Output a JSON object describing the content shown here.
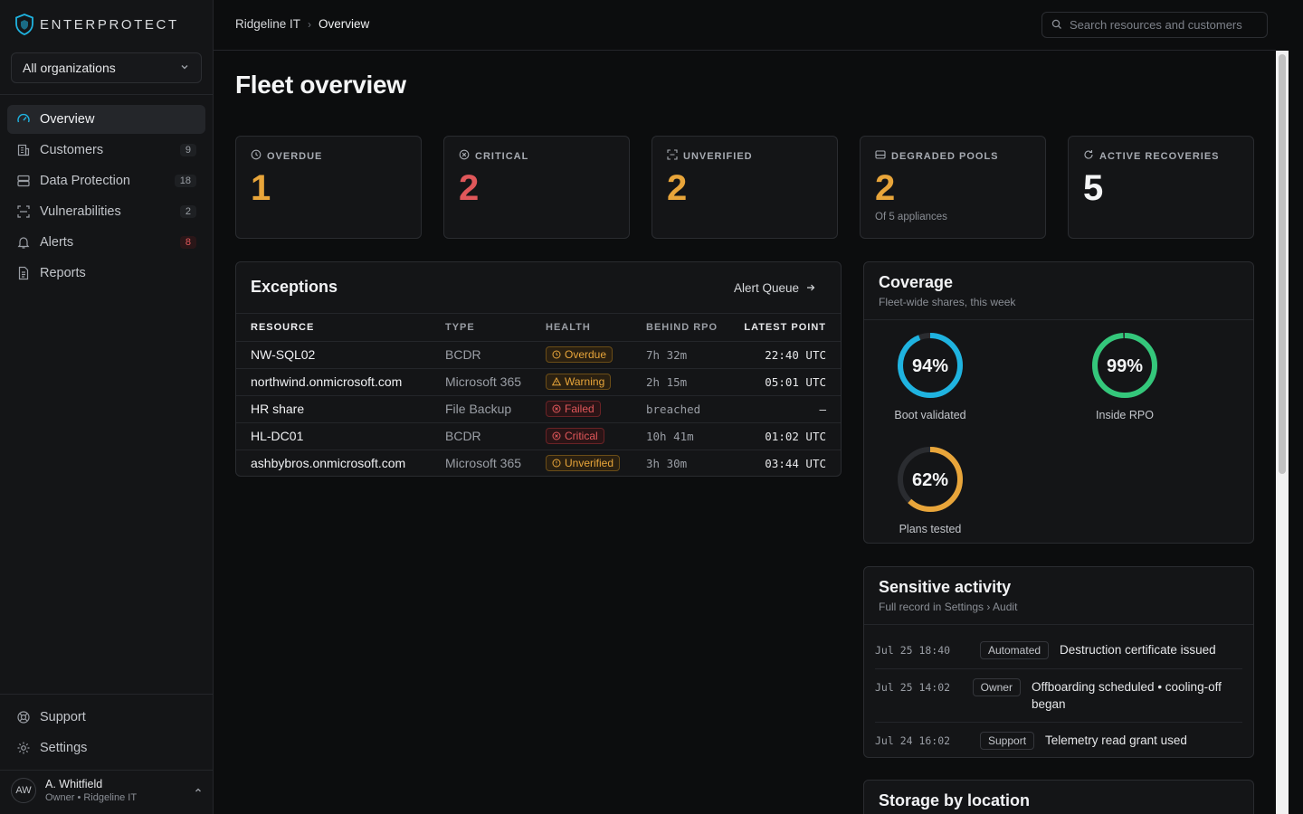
{
  "brand": {
    "name": "ENTERPROTECT"
  },
  "org_select": {
    "value": "All organizations"
  },
  "nav": [
    {
      "label": "Overview",
      "icon": "gauge-icon",
      "count": ""
    },
    {
      "label": "Customers",
      "icon": "building-icon",
      "count": "9"
    },
    {
      "label": "Data Protection",
      "icon": "database-icon",
      "count": "18"
    },
    {
      "label": "Vulnerabilities",
      "icon": "scan-icon",
      "count": "2"
    },
    {
      "label": "Alerts",
      "icon": "bell-icon",
      "count": "8"
    },
    {
      "label": "Reports",
      "icon": "document-icon",
      "count": ""
    }
  ],
  "bottom_nav": [
    {
      "label": "Support",
      "icon": "lifebuoy-icon"
    },
    {
      "label": "Settings",
      "icon": "gear-icon"
    }
  ],
  "user": {
    "initials": "AW",
    "name": "A. Whitfield",
    "role": "Owner • Ridgeline IT"
  },
  "breadcrumb": {
    "org": "Ridgeline IT",
    "page": "Overview"
  },
  "search": {
    "placeholder": "Search resources and customers"
  },
  "page_title": "Fleet overview",
  "stats": [
    {
      "label": "OVERDUE",
      "value": "1",
      "sub": "",
      "color": "#e8a53a",
      "icon": "clock-icon"
    },
    {
      "label": "CRITICAL",
      "value": "2",
      "sub": "",
      "color": "#e0575a",
      "icon": "x-circle-icon"
    },
    {
      "label": "UNVERIFIED",
      "value": "2",
      "sub": "",
      "color": "#e8a53a",
      "icon": "scan-icon"
    },
    {
      "label": "DEGRADED POOLS",
      "value": "2",
      "sub": "Of 5 appliances",
      "color": "#e8a53a",
      "icon": "drive-icon"
    },
    {
      "label": "ACTIVE RECOVERIES",
      "value": "5",
      "sub": "",
      "color": "#f4f5f6",
      "icon": "refresh-icon"
    }
  ],
  "exceptions": {
    "title": "Exceptions",
    "link": "Alert Queue",
    "columns": [
      "RESOURCE",
      "TYPE",
      "HEALTH",
      "BEHIND RPO",
      "LATEST POINT"
    ],
    "rows": [
      {
        "resource": "NW-SQL02",
        "type": "BCDR",
        "health": "Overdue",
        "tone": "amber",
        "icon": "clock",
        "rpo": "7h 32m",
        "latest": "22:40 UTC"
      },
      {
        "resource": "northwind.onmicrosoft.com",
        "type": "Microsoft 365",
        "health": "Warning",
        "tone": "amber",
        "icon": "warn",
        "rpo": "2h 15m",
        "latest": "05:01 UTC"
      },
      {
        "resource": "HR share",
        "type": "File Backup",
        "health": "Failed",
        "tone": "red",
        "icon": "x",
        "rpo": "breached",
        "latest": "–"
      },
      {
        "resource": "HL-DC01",
        "type": "BCDR",
        "health": "Critical",
        "tone": "red",
        "icon": "x",
        "rpo": "10h 41m",
        "latest": "01:02 UTC"
      },
      {
        "resource": "ashbybros.onmicrosoft.com",
        "type": "Microsoft 365",
        "health": "Unverified",
        "tone": "amber",
        "icon": "info",
        "rpo": "3h 30m",
        "latest": "03:44 UTC"
      }
    ]
  },
  "coverage": {
    "title": "Coverage",
    "subtitle": "Fleet-wide shares, this week",
    "items": [
      {
        "label": "Boot validated",
        "value": 94,
        "display": "94%",
        "color": "#1fb3e0"
      },
      {
        "label": "Inside RPO",
        "value": 99,
        "display": "99%",
        "color": "#34c77b"
      },
      {
        "label": "Plans tested",
        "value": 62,
        "display": "62%",
        "color": "#e8a53a"
      }
    ]
  },
  "sensitive": {
    "title": "Sensitive activity",
    "subtitle": "Full record in Settings › Audit",
    "items": [
      {
        "time": "Jul 25 18:40",
        "tag": "Automated",
        "text": "Destruction certificate issued"
      },
      {
        "time": "Jul 25 14:02",
        "tag": "Owner",
        "text": "Offboarding scheduled • cooling-off began"
      },
      {
        "time": "Jul 24 16:02",
        "tag": "Support",
        "text": "Telemetry read grant used"
      }
    ]
  },
  "storage": {
    "title": "Storage by location"
  }
}
